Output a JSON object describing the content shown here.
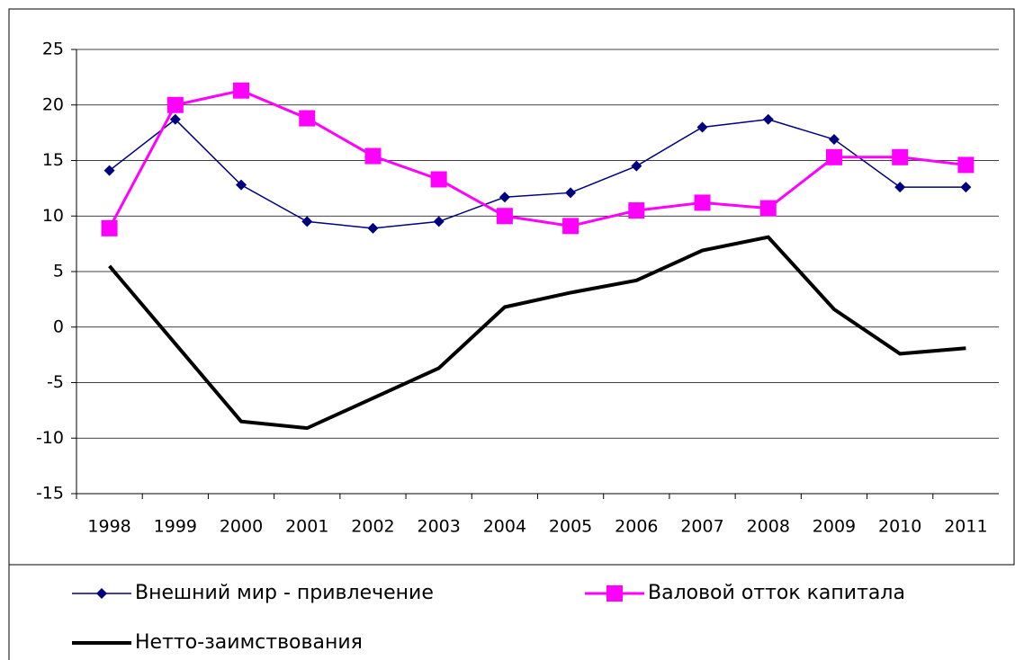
{
  "chart_data": {
    "type": "line",
    "categories": [
      "1998",
      "1999",
      "2000",
      "2001",
      "2002",
      "2003",
      "2004",
      "2005",
      "2006",
      "2007",
      "2008",
      "2009",
      "2010",
      "2011"
    ],
    "series": [
      {
        "name": "Внешний мир - привлечение",
        "color": "#000080",
        "marker": "diamond",
        "values": [
          14.1,
          18.7,
          12.8,
          9.5,
          8.9,
          9.5,
          11.7,
          12.1,
          14.5,
          18.0,
          18.7,
          16.9,
          12.6,
          12.6
        ]
      },
      {
        "name": "Валовой отток капитала",
        "color": "#ff00ff",
        "marker": "square",
        "values": [
          8.9,
          20.0,
          21.3,
          18.8,
          15.4,
          13.3,
          10.0,
          9.1,
          10.5,
          11.2,
          10.7,
          15.3,
          15.3,
          14.6
        ]
      },
      {
        "name": "Нетто-заимствования",
        "color": "#000000",
        "marker": "none",
        "values": [
          5.5,
          -1.5,
          -8.5,
          -9.1,
          -6.4,
          -3.7,
          1.8,
          3.1,
          4.2,
          6.9,
          8.1,
          1.6,
          -2.4,
          -1.9
        ]
      }
    ],
    "ylim": [
      -15,
      25
    ],
    "yticks": [
      -15,
      -10,
      -5,
      0,
      5,
      10,
      15,
      20,
      25
    ],
    "grid": true,
    "legend": "bottom"
  }
}
